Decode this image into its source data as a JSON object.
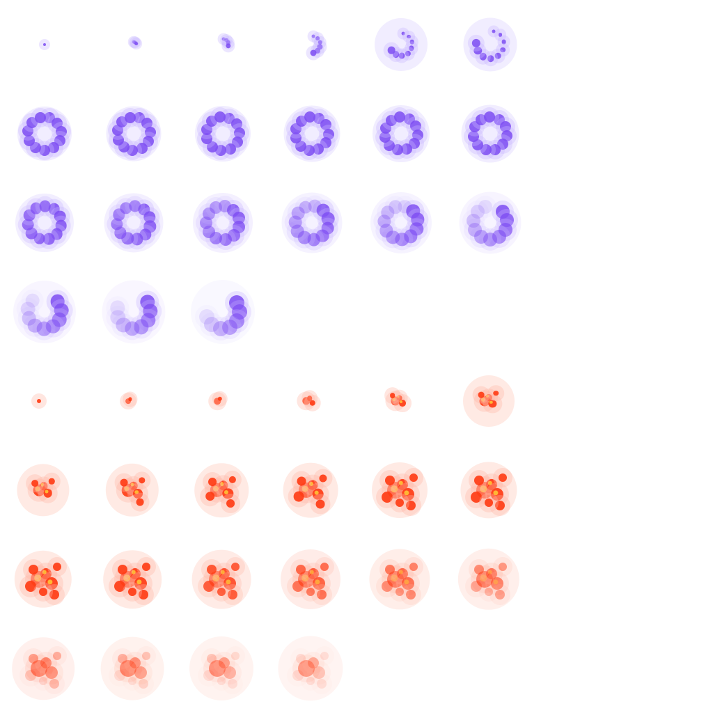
{
  "sheet": {
    "columns": 8,
    "background": "#ffffff",
    "animations": [
      {
        "name": "purple-ring-burst",
        "frame_count": 21,
        "colors": {
          "core": "#7d4cf2",
          "glow": "#c9b6ff",
          "highlight": "#b98cff"
        }
      },
      {
        "name": "orange-fire-burst",
        "frame_count": 22,
        "colors": {
          "core": "#ff3a12",
          "glow": "#ffb8a6",
          "highlight": "#ffd23a"
        }
      }
    ]
  }
}
